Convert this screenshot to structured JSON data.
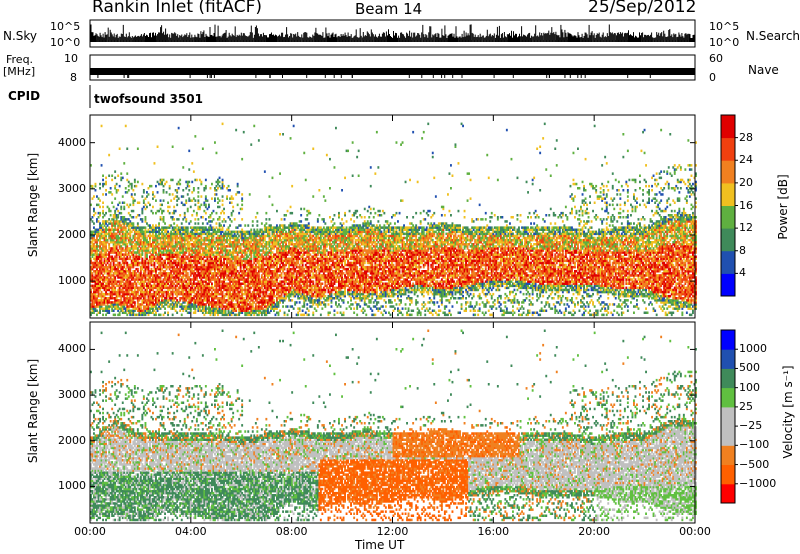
{
  "header": {
    "title": "Rankin Inlet (fitACF)",
    "beam": "Beam 14",
    "date": "25/Sep/2012"
  },
  "panels": {
    "nsky_label": "N.Sky",
    "nsearch_label": "N.Search",
    "freq_label_1": "Freq.",
    "freq_label_2": "[MHz]",
    "nave_label": "Nave",
    "cpid_label": "CPID",
    "cpid_value": "twofsound 3501",
    "nsky_ticks": [
      "10^5",
      "10^0"
    ],
    "nsearch_ticks": [
      "10^5",
      "10^0"
    ],
    "freq_ticks": [
      "10",
      "8"
    ],
    "nave_ticks": [
      "60",
      "0"
    ]
  },
  "colors": {
    "power": [
      "#0000ff",
      "#2050b0",
      "#3f8a5a",
      "#5fb040",
      "#f0c020",
      "#f08020",
      "#f04010",
      "#e00000"
    ],
    "velocity": [
      "#ff0000",
      "#ff6000",
      "#f08020",
      "#c0c0c0",
      "#c0c0c0",
      "#60c040",
      "#3f8a5a",
      "#2050b0",
      "#0000ff"
    ]
  },
  "chart_data": [
    {
      "type": "heatmap",
      "name_panel": "power",
      "xlabel": "",
      "ylabel": "Slant Range [km]",
      "xlim": [
        0,
        24
      ],
      "ylim": [
        200,
        4600
      ],
      "y_ticks": [
        1000,
        2000,
        3000,
        4000
      ],
      "colorbar_label": "Power [dB]",
      "colorbar_ticks": [
        4,
        8,
        12,
        16,
        20,
        24,
        28
      ],
      "colorbar_range": [
        0,
        32
      ],
      "main_band_lower_km": [
        400,
        500,
        300,
        600,
        500,
        400,
        300,
        400,
        800,
        600,
        800,
        700,
        800,
        900,
        800,
        900,
        1000,
        1000,
        900,
        900,
        900,
        800,
        800,
        600,
        500
      ],
      "main_band_upper_km": [
        1900,
        2300,
        2000,
        2000,
        2000,
        2000,
        1900,
        2000,
        2100,
        2000,
        2000,
        2100,
        2000,
        2000,
        2100,
        2000,
        2000,
        2000,
        2000,
        2000,
        1900,
        2000,
        2000,
        2300,
        2300
      ]
    },
    {
      "type": "heatmap",
      "name_panel": "velocity",
      "xlabel": "Time UT",
      "ylabel": "Slant Range [km]",
      "xlim": [
        0,
        24
      ],
      "ylim": [
        200,
        4600
      ],
      "x_ticks": [
        "00:00",
        "04:00",
        "08:00",
        "12:00",
        "16:00",
        "20:00",
        "00:00"
      ],
      "y_ticks": [
        1000,
        2000,
        3000,
        4000
      ],
      "colorbar_label": "Velocity [m s⁻¹]",
      "colorbar_ticks": [
        "1000",
        "500",
        "100",
        "25",
        "−25",
        "−100",
        "−500",
        "−1000"
      ]
    }
  ]
}
